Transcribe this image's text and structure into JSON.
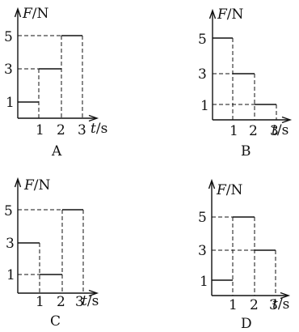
{
  "graphs": [
    {
      "caption": "A",
      "y_axis_label": "F",
      "y_axis_unit": "/N",
      "x_axis_label": "t",
      "x_axis_unit": "/s",
      "y_ticks": [
        "5",
        "3",
        "1"
      ],
      "x_ticks": [
        "1",
        "2",
        "3"
      ],
      "segments": [
        {
          "t_start": 0,
          "t_end": 1,
          "F": 1
        },
        {
          "t_start": 1,
          "t_end": 2,
          "F": 3
        },
        {
          "t_start": 2,
          "t_end": 3,
          "F": 5
        }
      ]
    },
    {
      "caption": "B",
      "y_axis_label": "F",
      "y_axis_unit": "/N",
      "x_axis_label": "t",
      "x_axis_unit": "/s",
      "y_ticks": [
        "5",
        "3",
        "1"
      ],
      "x_ticks": [
        "1",
        "2",
        "3"
      ],
      "segments": [
        {
          "t_start": 0,
          "t_end": 1,
          "F": 5
        },
        {
          "t_start": 1,
          "t_end": 2,
          "F": 3
        },
        {
          "t_start": 2,
          "t_end": 3,
          "F": 1
        }
      ]
    },
    {
      "caption": "C",
      "y_axis_label": "F",
      "y_axis_unit": "/N",
      "x_axis_label": "t",
      "x_axis_unit": "/s",
      "y_ticks": [
        "5",
        "3",
        "1"
      ],
      "x_ticks": [
        "1",
        "2",
        "3"
      ],
      "segments": [
        {
          "t_start": 0,
          "t_end": 1,
          "F": 3
        },
        {
          "t_start": 1,
          "t_end": 2,
          "F": 1
        },
        {
          "t_start": 2,
          "t_end": 3,
          "F": 5
        }
      ]
    },
    {
      "caption": "D",
      "y_axis_label": "F",
      "y_axis_unit": "/N",
      "x_axis_label": "t",
      "x_axis_unit": "/s",
      "y_ticks": [
        "5",
        "3",
        "1"
      ],
      "x_ticks": [
        "1",
        "2",
        "3"
      ],
      "segments": [
        {
          "t_start": 0,
          "t_end": 1,
          "F": 1
        },
        {
          "t_start": 1,
          "t_end": 2,
          "F": 5
        },
        {
          "t_start": 2,
          "t_end": 3,
          "F": 3
        }
      ]
    }
  ]
}
